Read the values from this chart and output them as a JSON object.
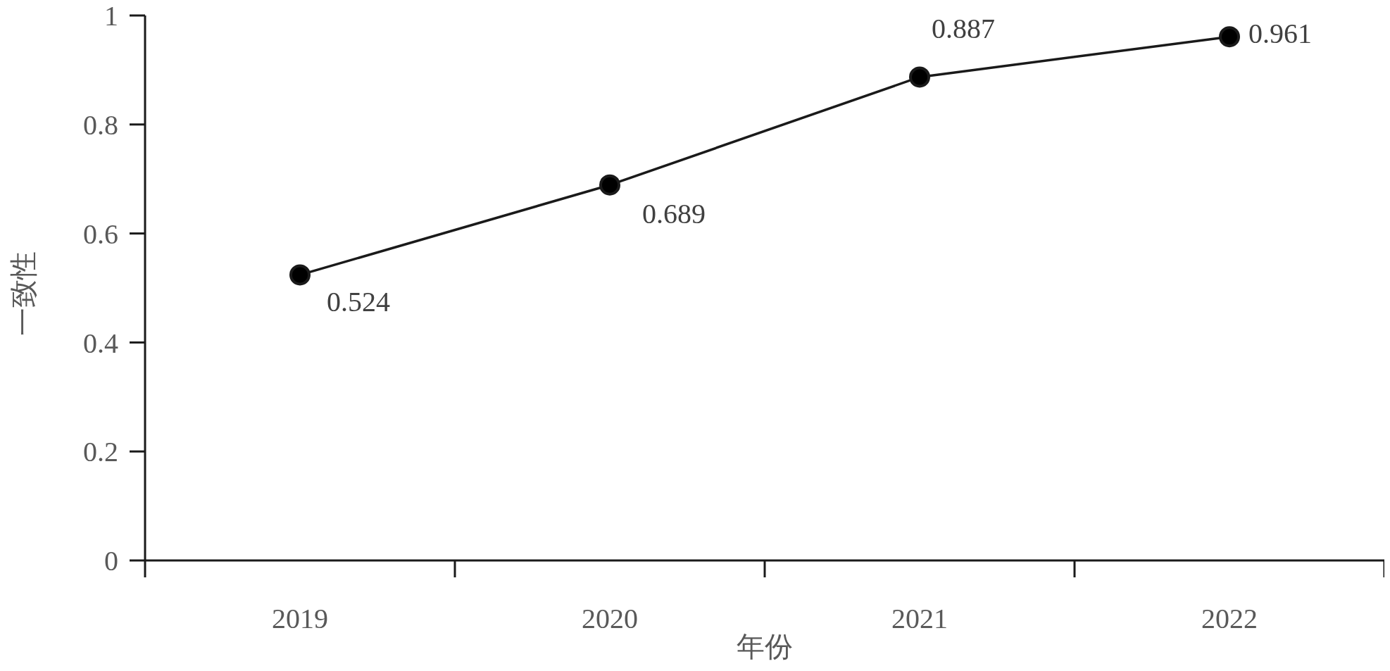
{
  "chart_data": {
    "type": "line",
    "xlabel": "年份",
    "ylabel": "一致性",
    "categories": [
      "2019",
      "2020",
      "2021",
      "2022"
    ],
    "values": [
      0.524,
      0.689,
      0.887,
      0.961
    ],
    "color": "#1a1a1a",
    "ylim": [
      0,
      1
    ],
    "yticks": [
      0,
      0.2,
      0.4,
      0.6,
      0.8,
      1
    ],
    "marker": "circle",
    "line_style": "solid",
    "data_labels": true
  }
}
